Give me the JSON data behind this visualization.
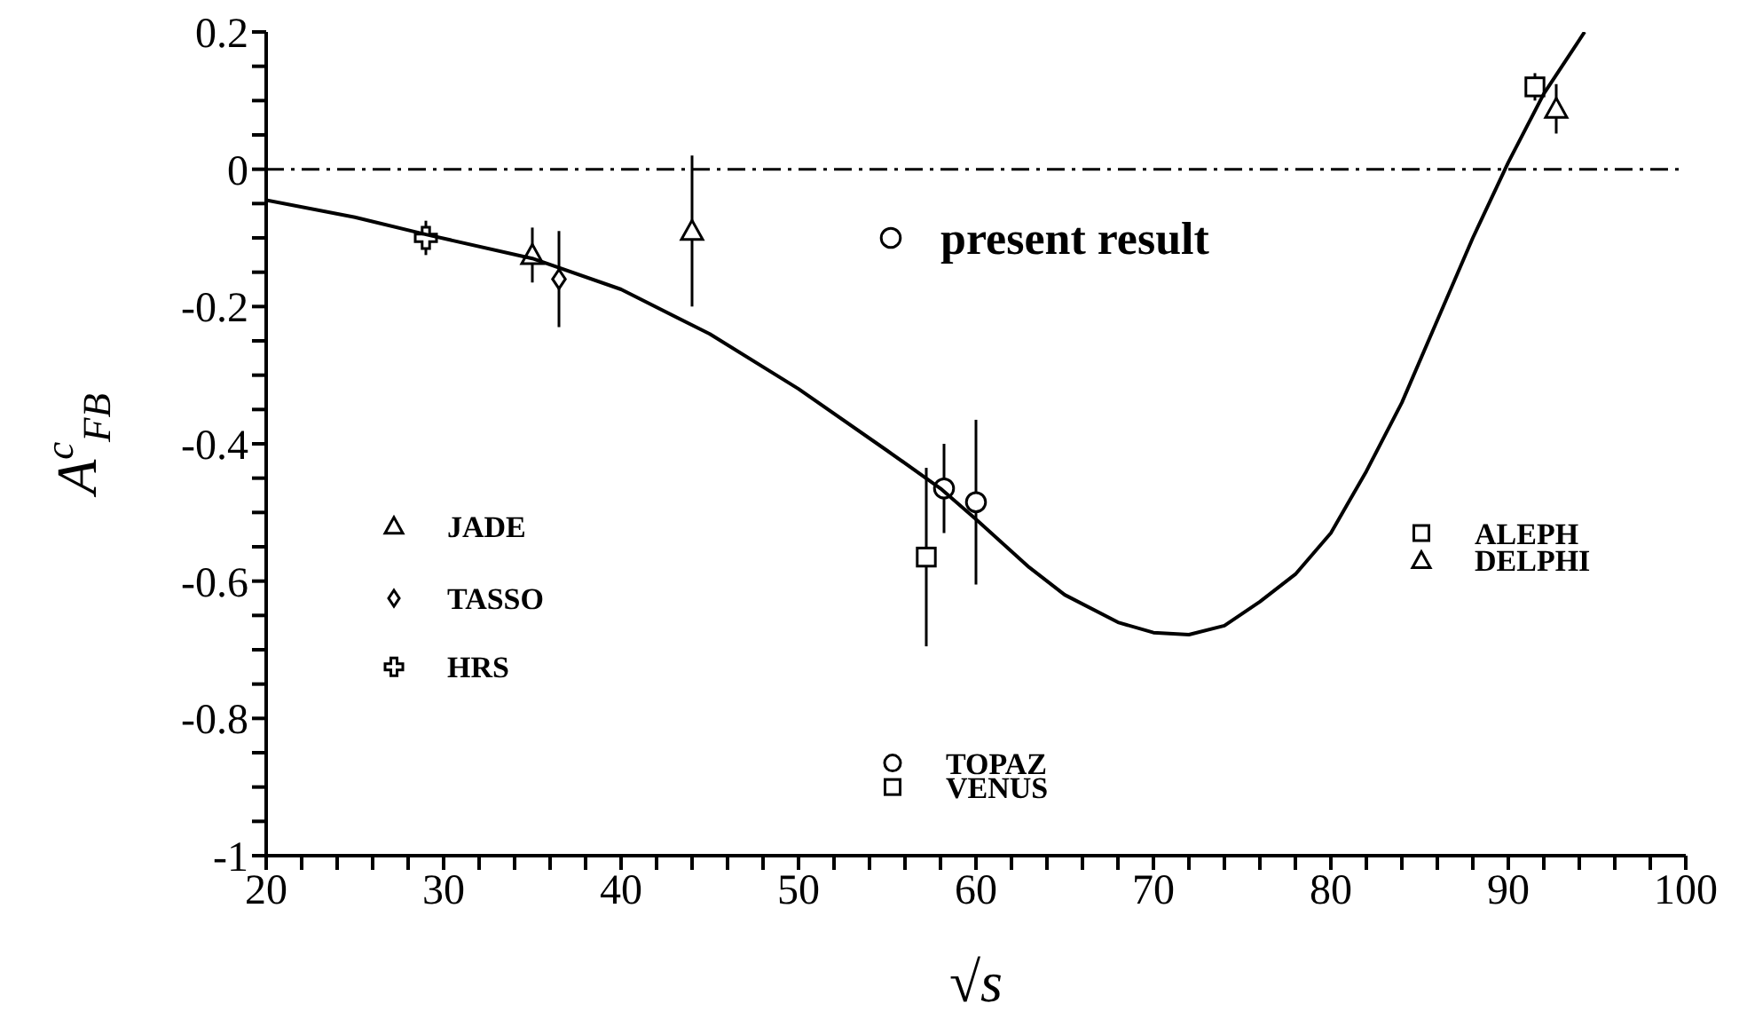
{
  "chart_data": {
    "type": "scatter",
    "xlabel": "√s",
    "ylabel": "A$^{c}$$_{FB}$",
    "xlim": [
      20,
      100
    ],
    "ylim": [
      -1,
      0.2
    ],
    "xticks": [
      20,
      {
        "value": 22,
        "label": null
      },
      {
        "value": 24,
        "label": null
      },
      {
        "value": 26,
        "label": null
      },
      {
        "value": 28,
        "label": null
      },
      30,
      {
        "value": 32,
        "label": null
      },
      {
        "value": 34,
        "label": null
      },
      {
        "value": 36,
        "label": null
      },
      {
        "value": 38,
        "label": null
      },
      40,
      {
        "value": 42,
        "label": null
      },
      {
        "value": 44,
        "label": null
      },
      {
        "value": 46,
        "label": null
      },
      {
        "value": 48,
        "label": null
      },
      50,
      {
        "value": 52,
        "label": null
      },
      {
        "value": 54,
        "label": null
      },
      {
        "value": 56,
        "label": null
      },
      {
        "value": 58,
        "label": null
      },
      60,
      {
        "value": 62,
        "label": null
      },
      {
        "value": 64,
        "label": null
      },
      {
        "value": 66,
        "label": null
      },
      {
        "value": 68,
        "label": null
      },
      70,
      {
        "value": 72,
        "label": null
      },
      {
        "value": 74,
        "label": null
      },
      {
        "value": 76,
        "label": null
      },
      {
        "value": 78,
        "label": null
      },
      80,
      {
        "value": 82,
        "label": null
      },
      {
        "value": 84,
        "label": null
      },
      {
        "value": 86,
        "label": null
      },
      {
        "value": 88,
        "label": null
      },
      90,
      {
        "value": 92,
        "label": null
      },
      {
        "value": 94,
        "label": null
      },
      {
        "value": 96,
        "label": null
      },
      {
        "value": 98,
        "label": null
      },
      100
    ],
    "yticks": [
      -1,
      {
        "value": -0.95,
        "label": null
      },
      {
        "value": -0.9,
        "label": null
      },
      {
        "value": -0.85,
        "label": null
      },
      -0.8,
      {
        "value": -0.75,
        "label": null
      },
      {
        "value": -0.7,
        "label": null
      },
      {
        "value": -0.65,
        "label": null
      },
      -0.6,
      {
        "value": -0.55,
        "label": null
      },
      {
        "value": -0.5,
        "label": null
      },
      {
        "value": -0.45,
        "label": null
      },
      -0.4,
      {
        "value": -0.35,
        "label": null
      },
      {
        "value": -0.3,
        "label": null
      },
      {
        "value": -0.25,
        "label": null
      },
      -0.2,
      {
        "value": -0.15,
        "label": null
      },
      {
        "value": -0.1,
        "label": null
      },
      {
        "value": -0.05,
        "label": null
      },
      0,
      {
        "value": 0.05,
        "label": null
      },
      {
        "value": 0.1,
        "label": null
      },
      {
        "value": 0.15,
        "label": null
      },
      0.2
    ],
    "grid": false,
    "legend": "bottom left",
    "ref_lines": [
      {
        "axis": "y",
        "value": 0,
        "line_style": "dashed",
        "color": "#000000"
      }
    ],
    "series": [
      {
        "name": "JADE",
        "color": "#000000",
        "marker": "triangle",
        "x": [
          35,
          44
        ],
        "values": [
          -0.125,
          -0.09
        ],
        "errors": [
          0.04,
          0.11
        ]
      },
      {
        "name": "TASSO",
        "color": "#000000",
        "marker": "diamond",
        "x": [
          36.5
        ],
        "values": [
          -0.16
        ],
        "errors": [
          0.07
        ]
      },
      {
        "name": "HRS",
        "color": "#000000",
        "marker": "cross",
        "x": [
          29
        ],
        "values": [
          -0.1
        ],
        "errors": [
          0.025
        ]
      },
      {
        "name": "present result",
        "color": "#000000",
        "marker": "circle",
        "x": [
          58.2
        ],
        "values": [
          -0.465
        ],
        "errors": [
          0.065
        ]
      },
      {
        "name": "TOPAZ",
        "color": "#000000",
        "marker": "circle",
        "x": [
          60
        ],
        "values": [
          -0.485
        ],
        "errors": [
          0.12
        ]
      },
      {
        "name": "VENUS",
        "color": "#000000",
        "marker": "square",
        "x": [
          57.2
        ],
        "values": [
          -0.565
        ],
        "errors": [
          0.13
        ]
      },
      {
        "name": "ALEPH",
        "color": "#000000",
        "marker": "square",
        "x": [
          91.5
        ],
        "values": [
          0.12
        ],
        "errors": [
          0.02
        ]
      },
      {
        "name": "DELPHI",
        "color": "#000000",
        "marker": "triangle",
        "x": [
          92.7
        ],
        "values": [
          0.088
        ],
        "errors": [
          0.036
        ]
      },
      {
        "type": "line",
        "color": "#000000",
        "marker": "none",
        "x": [
          20,
          25,
          29,
          35,
          40,
          45,
          50,
          55,
          58,
          60,
          63,
          65,
          68,
          70,
          72,
          74,
          76,
          78,
          80,
          82,
          84,
          86,
          88,
          90,
          92,
          94.3
        ],
        "values": [
          -0.045,
          -0.07,
          -0.095,
          -0.13,
          -0.175,
          -0.24,
          -0.32,
          -0.41,
          -0.465,
          -0.51,
          -0.58,
          -0.62,
          -0.66,
          -0.675,
          -0.678,
          -0.665,
          -0.63,
          -0.59,
          -0.53,
          -0.44,
          -0.34,
          -0.22,
          -0.1,
          0.01,
          0.11,
          0.2
        ]
      }
    ]
  }
}
